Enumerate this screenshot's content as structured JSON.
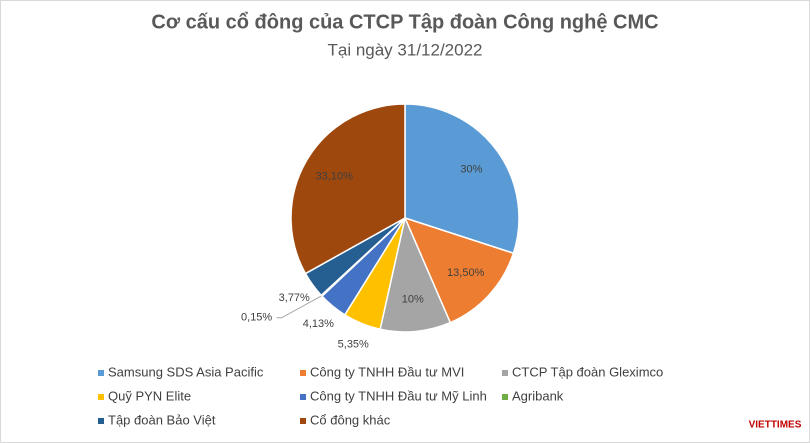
{
  "chart_data": {
    "type": "pie",
    "title": "Cơ cấu cổ đông của CTCP Tập đoàn Công nghệ CMC",
    "subtitle": "Tại ngày 31/12/2022",
    "categories": [
      "Samsung SDS Asia Pacific",
      "Công ty TNHH Đầu tư MVI",
      "CTCP Tập đoàn Gleximco",
      "Quỹ PYN Elite",
      "Công ty TNHH Đầu tư Mỹ Linh",
      "Agribank",
      "Tập đoàn Bảo Việt",
      "Cổ đông khác"
    ],
    "values": [
      30,
      13.5,
      10,
      5.35,
      4.13,
      0.15,
      3.77,
      33.1
    ],
    "value_labels": [
      "30%",
      "13,50%",
      "10%",
      "5,35%",
      "4,13%",
      "0,15%",
      "3,77%",
      "33,10%"
    ],
    "colors": [
      "#5b9bd5",
      "#ed7d31",
      "#a5a5a5",
      "#ffc000",
      "#4472c4",
      "#70ad47",
      "#255e91",
      "#9e480e"
    ],
    "legend": "bottom",
    "watermark": "VIETTIMES"
  }
}
